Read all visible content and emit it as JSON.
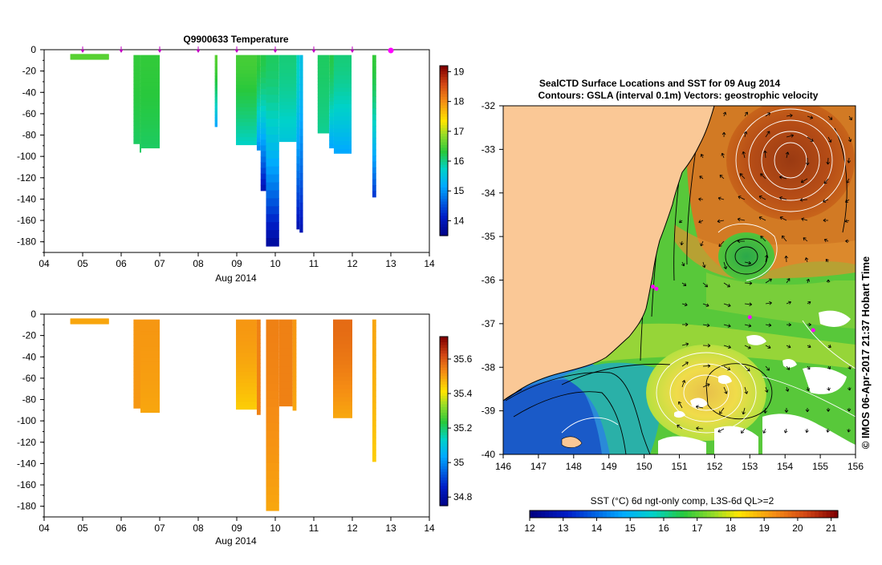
{
  "temperature_panel": {
    "title": "Q9900633  Temperature",
    "x_axis_label": "Aug 2014"
  },
  "salinity_panel": {
    "title": "",
    "x_axis_label": "Aug 2014"
  },
  "map_panel": {
    "title_line1": "SealCTD Surface Locations and SST for 09 Aug 2014",
    "title_line2": "Contours: GSLA (interval 0.1m) Vectors: geostrophic velocity",
    "credit": "© IMOS 06-Apr-2017 21:37 Hobart Time",
    "colorbar_label": "SST (°C) 6d ngt-only comp, L3S-6d QL>=2"
  },
  "colors": {
    "land": "#fac896",
    "axis": "#000000",
    "track_marker": "#ff00ff",
    "contour_positive": "#ffffff",
    "contour_negative": "#000000"
  },
  "chart_data": [
    {
      "type": "heatmap",
      "title": "Q9900633  Temperature",
      "xlabel": "Aug 2014",
      "ylabel": "",
      "xlim": [
        4,
        14
      ],
      "ylim": [
        -190,
        0
      ],
      "x_ticks": [
        "04",
        "05",
        "06",
        "07",
        "08",
        "09",
        "10",
        "11",
        "12",
        "13",
        "14"
      ],
      "y_ticks": [
        0,
        -20,
        -40,
        -60,
        -80,
        -100,
        -120,
        -140,
        -160,
        -180
      ],
      "colorbar": {
        "min": 13.5,
        "max": 19.2,
        "ticks": [
          14,
          15,
          16,
          17,
          18,
          19
        ]
      },
      "profile_times": [
        5.0,
        6.0,
        7.0,
        8.0,
        9.0,
        10.0,
        11.0,
        12.0
      ],
      "last_position_time": 13.0,
      "casts": [
        {
          "x0": 4.68,
          "x1": 5.68,
          "depth": 9,
          "surf": 16.6,
          "bottom": 16.6
        },
        {
          "x0": 6.32,
          "x1": 6.48,
          "depth": 88,
          "surf": 16.4,
          "bottom": 16.2
        },
        {
          "x0": 6.48,
          "x1": 6.52,
          "depth": 96,
          "surf": 16.4,
          "bottom": 16.2
        },
        {
          "x0": 6.52,
          "x1": 7.0,
          "depth": 92,
          "surf": 16.4,
          "bottom": 16.2
        },
        {
          "x0": 8.43,
          "x1": 8.5,
          "depth": 72,
          "surf": 16.6,
          "bottom": 15.2
        },
        {
          "x0": 8.98,
          "x1": 9.52,
          "depth": 89,
          "surf": 16.5,
          "bottom": 15.8
        },
        {
          "x0": 9.52,
          "x1": 9.62,
          "depth": 94,
          "surf": 16.4,
          "bottom": 15.0
        },
        {
          "x0": 9.62,
          "x1": 9.76,
          "depth": 132,
          "surf": 16.3,
          "bottom": 14.0
        },
        {
          "x0": 9.76,
          "x1": 10.1,
          "depth": 184,
          "surf": 16.2,
          "bottom": 13.8
        },
        {
          "x0": 10.1,
          "x1": 10.55,
          "depth": 86,
          "surf": 16.1,
          "bottom": 15.6
        },
        {
          "x0": 10.55,
          "x1": 10.63,
          "depth": 168,
          "surf": 15.8,
          "bottom": 14.0
        },
        {
          "x0": 10.63,
          "x1": 10.72,
          "depth": 171,
          "surf": 15.5,
          "bottom": 14.0
        },
        {
          "x0": 11.1,
          "x1": 11.4,
          "depth": 78,
          "surf": 16.2,
          "bottom": 16.0
        },
        {
          "x0": 11.4,
          "x1": 11.52,
          "depth": 92,
          "surf": 16.3,
          "bottom": 15.2
        },
        {
          "x0": 11.52,
          "x1": 11.98,
          "depth": 97,
          "surf": 16.1,
          "bottom": 15.2
        },
        {
          "x0": 12.52,
          "x1": 12.62,
          "depth": 138,
          "surf": 16.4,
          "bottom": 14.4
        }
      ]
    },
    {
      "type": "heatmap",
      "title": "",
      "xlabel": "Aug 2014",
      "ylabel": "",
      "xlim": [
        4,
        14
      ],
      "ylim": [
        -190,
        0
      ],
      "x_ticks": [
        "04",
        "05",
        "06",
        "07",
        "08",
        "09",
        "10",
        "11",
        "12",
        "13",
        "14"
      ],
      "y_ticks": [
        0,
        -20,
        -40,
        -60,
        -80,
        -100,
        -120,
        -140,
        -160,
        -180
      ],
      "colorbar": {
        "min": 34.75,
        "max": 35.73,
        "ticks": [
          34.8,
          35,
          35.2,
          35.4,
          35.6
        ]
      },
      "casts": [
        {
          "x0": 4.68,
          "x1": 5.68,
          "depth": 9,
          "surf": 35.5,
          "bottom": 35.5
        },
        {
          "x0": 6.32,
          "x1": 6.5,
          "depth": 88,
          "surf": 35.52,
          "bottom": 35.52
        },
        {
          "x0": 6.5,
          "x1": 7.0,
          "depth": 92,
          "surf": 35.52,
          "bottom": 35.5
        },
        {
          "x0": 8.98,
          "x1": 9.52,
          "depth": 89,
          "surf": 35.52,
          "bottom": 35.45
        },
        {
          "x0": 9.52,
          "x1": 9.62,
          "depth": 94,
          "surf": 35.55,
          "bottom": 35.55
        },
        {
          "x0": 9.76,
          "x1": 10.1,
          "depth": 184,
          "surf": 35.55,
          "bottom": 35.5
        },
        {
          "x0": 10.1,
          "x1": 10.45,
          "depth": 86,
          "surf": 35.55,
          "bottom": 35.55
        },
        {
          "x0": 10.45,
          "x1": 10.55,
          "depth": 90,
          "surf": 35.52,
          "bottom": 35.5
        },
        {
          "x0": 11.5,
          "x1": 12.0,
          "depth": 97,
          "surf": 35.58,
          "bottom": 35.5
        },
        {
          "x0": 12.52,
          "x1": 12.62,
          "depth": 138,
          "surf": 35.5,
          "bottom": 35.45
        }
      ]
    },
    {
      "type": "heatmap",
      "title": "SealCTD Surface Locations and SST for 09 Aug 2014",
      "subtitle": "Contours: GSLA (interval 0.1m) Vectors: geostrophic velocity",
      "xlabel": "",
      "ylabel": "",
      "xlim": [
        146,
        156
      ],
      "ylim": [
        -40,
        -32
      ],
      "x_ticks": [
        146,
        147,
        148,
        149,
        150,
        151,
        152,
        153,
        154,
        155,
        156
      ],
      "y_ticks": [
        -32,
        -33,
        -34,
        -35,
        -36,
        -37,
        -38,
        -39,
        -40
      ],
      "colorbar": {
        "min": 12,
        "max": 21.2,
        "ticks": [
          12,
          13,
          14,
          15,
          16,
          17,
          18,
          19,
          20,
          21
        ]
      },
      "sea_level_features": [
        {
          "kind": "warm_eddy",
          "lon": 154.1,
          "lat": -33.7
        },
        {
          "kind": "cold_eddy",
          "lon": 152.9,
          "lat": -35.5
        },
        {
          "kind": "warm_eddy",
          "lon": 152.2,
          "lat": -38.8
        }
      ],
      "seal_positions": [
        {
          "lon": 150.25,
          "lat": -36.15
        },
        {
          "lon": 150.35,
          "lat": -36.2
        },
        {
          "lon": 153.0,
          "lat": -36.85
        },
        {
          "lon": 154.8,
          "lat": -37.15
        }
      ]
    }
  ]
}
